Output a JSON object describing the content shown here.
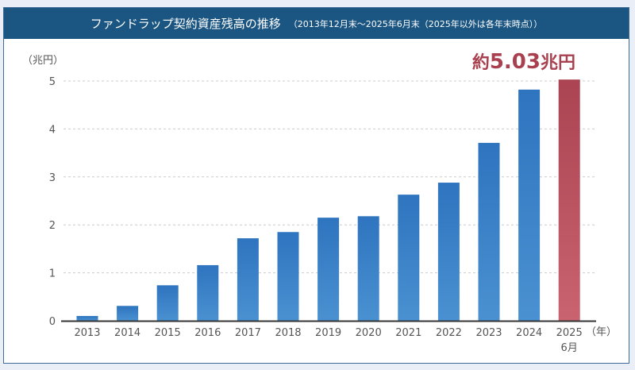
{
  "header": {
    "title": "ファンドラップ契約資産残高の推移",
    "subtitle": "（2013年12月末～2025年6月末（2025年以外は各年末時点））"
  },
  "colors": {
    "bar": "#2f78c2",
    "bar_light": "#4a90d0",
    "highlight": "#b14a57",
    "highlight_light": "#c9626f",
    "header": "#1b5581"
  },
  "chart_data": {
    "type": "bar",
    "title": "ファンドラップ契約資産残高の推移",
    "ylabel": "（兆円）",
    "xlabel": "（年）",
    "ylim": [
      0,
      5
    ],
    "yticks": [
      0,
      1,
      2,
      3,
      4,
      5
    ],
    "grid": true,
    "categories": [
      "2013",
      "2014",
      "2015",
      "2016",
      "2017",
      "2018",
      "2019",
      "2020",
      "2021",
      "2022",
      "2023",
      "2024",
      "2025"
    ],
    "category_sublabels": {
      "2025": "6月"
    },
    "values": [
      0.1,
      0.31,
      0.74,
      1.16,
      1.72,
      1.85,
      2.15,
      2.18,
      2.63,
      2.88,
      3.71,
      4.82,
      5.03
    ],
    "highlight_index": 12,
    "annotation": {
      "prefix": "約",
      "value": "5.03",
      "suffix": "兆円"
    }
  }
}
